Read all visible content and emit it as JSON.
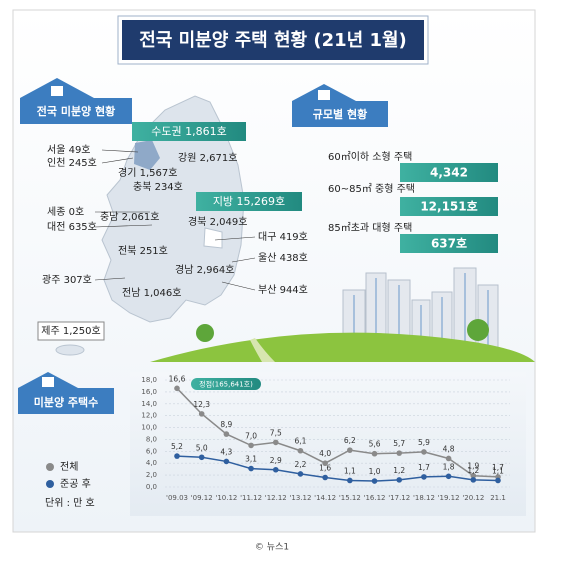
{
  "header": {
    "title": "전국 미분양 주택 현황 (21년 1월)"
  },
  "regional": {
    "title": "전국 미분양 현황",
    "capital_area": "수도권 1,861호",
    "provinces": "지방 15,269호",
    "regions": [
      "서울 49호",
      "인천 245호",
      "경기 1,567호",
      "강원 2,671호",
      "충북 234호",
      "세종 0호",
      "충남 2,061호",
      "대전 635호",
      "경북 2,049호",
      "대구 419호",
      "전북 251호",
      "울산 438호",
      "광주 307호",
      "경남 2,964호",
      "부산 944호",
      "전남 1,046호",
      "제주 1,250호"
    ]
  },
  "by_size": {
    "title": "규모별 현황",
    "items": [
      {
        "label": "60㎡이하 소형 주택",
        "value": "4,342"
      },
      {
        "label": "60~85㎡ 중형 주택",
        "value": "12,151호"
      },
      {
        "label": "85㎡초과 대형 주택",
        "value": "637호"
      }
    ]
  },
  "chart_data": {
    "type": "line",
    "title": "미분양 주택수",
    "unit_label": "단위 : 만 호",
    "annotation": "정점(165,641호)",
    "categories": [
      "'09.03",
      "'09.12",
      "'10.12",
      "'11.12",
      "'12.12",
      "'13.12",
      "'14.12",
      "'15.12",
      "'16.12",
      "'17.12",
      "'18.12",
      "'19.12",
      "'20.12",
      "21.1"
    ],
    "series": [
      {
        "name": "전체",
        "color": "#8a8a8a",
        "values": [
          16.6,
          12.3,
          8.9,
          7.0,
          7.5,
          6.1,
          4.0,
          6.2,
          5.6,
          5.7,
          5.9,
          4.8,
          1.9,
          1.7
        ],
        "value_labels": [
          "16,6",
          "12,3",
          "8,9",
          "7,0",
          "7,5",
          "6,1",
          "4,0",
          "6,2",
          "5,6",
          "5,7",
          "5,9",
          "4,8",
          "1,9",
          "1,7"
        ]
      },
      {
        "name": "준공 후",
        "color": "#2f5f9f",
        "values": [
          5.2,
          5.0,
          4.3,
          3.1,
          2.9,
          2.2,
          1.6,
          1.1,
          1.0,
          1.2,
          1.7,
          1.8,
          1.2,
          1.1
        ],
        "value_labels": [
          "5,2",
          "5,0",
          "4,3",
          "3,1",
          "2,9",
          "2,2",
          "1,6",
          "1,1",
          "1,0",
          "1,2",
          "1,7",
          "1,8",
          "1,2",
          "1,1"
        ]
      }
    ],
    "ylim": [
      0,
      18
    ],
    "yticks": [
      {
        "value": 0,
        "label": "0,0"
      },
      {
        "value": 2,
        "label": "2,0"
      },
      {
        "value": 4,
        "label": "4,0"
      },
      {
        "value": 6,
        "label": "6,0"
      },
      {
        "value": 8,
        "label": "8,0"
      },
      {
        "value": 10,
        "label": "10,0"
      },
      {
        "value": 12,
        "label": "12,0"
      },
      {
        "value": 14,
        "label": "14,0"
      },
      {
        "value": 16,
        "label": "16,0"
      },
      {
        "value": 18,
        "label": "18,0"
      }
    ],
    "grid": true
  },
  "footer": {
    "credit": "© 뉴스1"
  }
}
